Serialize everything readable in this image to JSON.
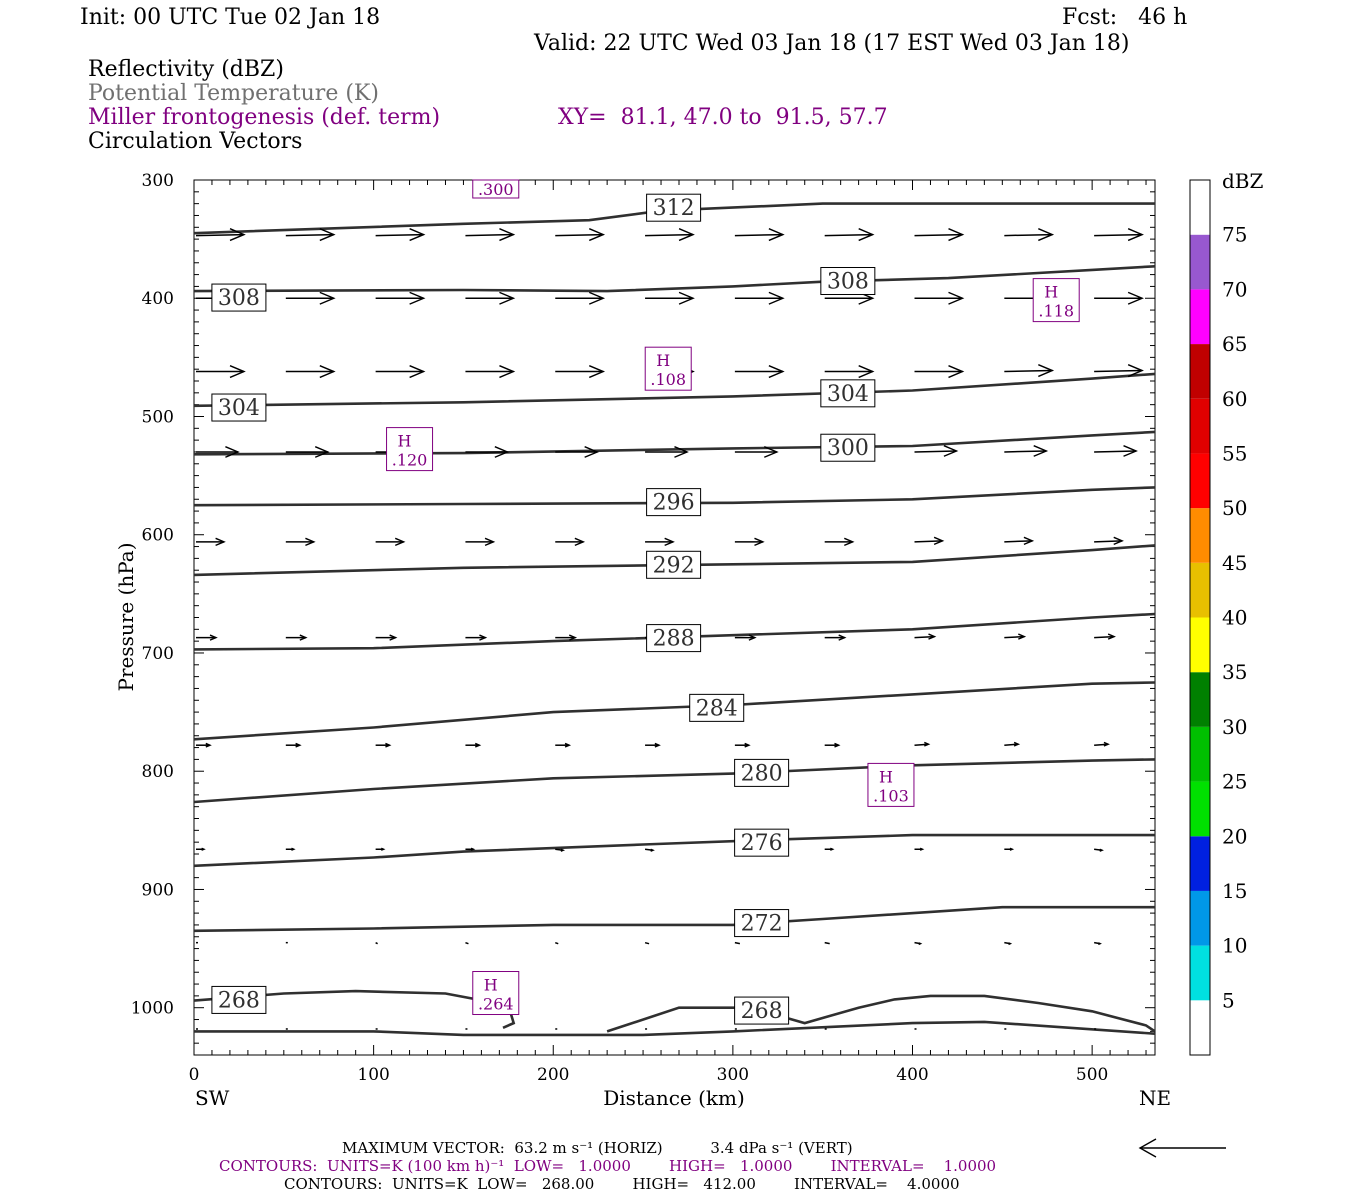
{
  "header": {
    "init": "Init: 00 UTC Tue 02 Jan 18",
    "fcst": "Fcst:   46 h",
    "valid": "Valid: 22 UTC Wed 03 Jan 18 (17 EST Wed 03 Jan 18)",
    "field1": "Reflectivity (dBZ)",
    "field2": "Potential Temperature (K)",
    "field3": "Miller frontogenesis (def. term)",
    "xy": "XY=  81.1, 47.0 to  91.5, 57.7",
    "field4": "Circulation Vectors"
  },
  "colors": {
    "purple": "#800080",
    "theta": "#303030",
    "colorbar": [
      "#ffffff",
      "#00e0e0",
      "#0098e8",
      "#0020e0",
      "#00e000",
      "#00c000",
      "#008000",
      "#ffff00",
      "#e8c000",
      "#ff8c00",
      "#ff0000",
      "#e00000",
      "#c00000",
      "#ff00ff",
      "#9858d0",
      "#ffffff"
    ]
  },
  "chart_data": {
    "type": "cross-section",
    "xlabel": "Distance (km)",
    "ylabel": "Pressure (hPa)",
    "xlim": [
      0,
      535
    ],
    "ylim": [
      1040,
      300
    ],
    "x_ticks": [
      "0",
      "100",
      "200",
      "300",
      "400",
      "500"
    ],
    "y_ticks": [
      "300",
      "400",
      "500",
      "600",
      "700",
      "800",
      "900",
      "1000"
    ],
    "left_end": "SW",
    "right_end": "NE",
    "theta_contours": [
      {
        "label": "312",
        "label_at": [
          267,
          323
        ],
        "points": [
          [
            0,
            345
          ],
          [
            150,
            337
          ],
          [
            220,
            334
          ],
          [
            260,
            326
          ],
          [
            350,
            320
          ],
          [
            535,
            320
          ]
        ]
      },
      {
        "label": "308",
        "label_at": [
          25,
          399
        ],
        "points": [
          [
            0,
            394
          ],
          [
            150,
            393
          ],
          [
            230,
            394
          ],
          [
            300,
            390
          ],
          [
            350,
            386
          ],
          [
            420,
            383
          ],
          [
            500,
            376
          ],
          [
            535,
            373
          ]
        ]
      },
      {
        "label": "308",
        "label_at": [
          364,
          385
        ],
        "points": []
      },
      {
        "label": "304",
        "label_at": [
          25,
          492
        ],
        "points": [
          [
            0,
            491
          ],
          [
            150,
            488
          ],
          [
            300,
            483
          ],
          [
            400,
            478
          ],
          [
            500,
            468
          ],
          [
            535,
            464
          ]
        ]
      },
      {
        "label": "304",
        "label_at": [
          364,
          480
        ],
        "points": []
      },
      {
        "label": "300",
        "label_at": [
          364,
          526
        ],
        "points": [
          [
            0,
            532
          ],
          [
            150,
            531
          ],
          [
            300,
            527
          ],
          [
            400,
            525
          ],
          [
            500,
            516
          ],
          [
            535,
            513
          ]
        ]
      },
      {
        "label": "296",
        "label_at": [
          267,
          572
        ],
        "points": [
          [
            0,
            575
          ],
          [
            150,
            574
          ],
          [
            300,
            573
          ],
          [
            400,
            570
          ],
          [
            500,
            562
          ],
          [
            535,
            560
          ]
        ]
      },
      {
        "label": "292",
        "label_at": [
          267,
          625
        ],
        "points": [
          [
            0,
            634
          ],
          [
            150,
            628
          ],
          [
            300,
            625
          ],
          [
            400,
            623
          ],
          [
            500,
            613
          ],
          [
            535,
            609
          ]
        ]
      },
      {
        "label": "288",
        "label_at": [
          267,
          687
        ],
        "points": [
          [
            0,
            697
          ],
          [
            100,
            696
          ],
          [
            200,
            690
          ],
          [
            300,
            685
          ],
          [
            400,
            680
          ],
          [
            500,
            670
          ],
          [
            535,
            667
          ]
        ]
      },
      {
        "label": "284",
        "label_at": [
          291,
          746
        ],
        "points": [
          [
            0,
            773
          ],
          [
            100,
            763
          ],
          [
            200,
            750
          ],
          [
            300,
            744
          ],
          [
            400,
            735
          ],
          [
            500,
            726
          ],
          [
            535,
            725
          ]
        ]
      },
      {
        "label": "280",
        "label_at": [
          316,
          801
        ],
        "points": [
          [
            0,
            826
          ],
          [
            100,
            815
          ],
          [
            200,
            806
          ],
          [
            300,
            802
          ],
          [
            400,
            795
          ],
          [
            500,
            791
          ],
          [
            535,
            790
          ]
        ]
      },
      {
        "label": "276",
        "label_at": [
          316,
          860
        ],
        "points": [
          [
            0,
            880
          ],
          [
            100,
            873
          ],
          [
            150,
            868
          ],
          [
            250,
            862
          ],
          [
            320,
            858
          ],
          [
            400,
            854
          ],
          [
            535,
            854
          ]
        ]
      },
      {
        "label": "272",
        "label_at": [
          316,
          928
        ],
        "points": [
          [
            0,
            935
          ],
          [
            100,
            933
          ],
          [
            200,
            930
          ],
          [
            300,
            930
          ],
          [
            350,
            925
          ],
          [
            450,
            915
          ],
          [
            535,
            915
          ]
        ]
      },
      {
        "label": "268",
        "label_at": [
          25,
          993
        ],
        "points": [
          [
            0,
            994
          ],
          [
            50,
            988
          ],
          [
            90,
            986
          ],
          [
            140,
            988
          ],
          [
            175,
            998
          ],
          [
            178,
            1013
          ],
          [
            172,
            1017
          ]
        ]
      },
      {
        "label": "268",
        "label_at": [
          316,
          1002
        ],
        "points": [
          [
            230,
            1020
          ],
          [
            270,
            1000
          ],
          [
            310,
            1000
          ],
          [
            340,
            1013
          ],
          [
            370,
            1000
          ],
          [
            390,
            993
          ],
          [
            410,
            990
          ],
          [
            440,
            990
          ],
          [
            470,
            996
          ],
          [
            500,
            1003
          ],
          [
            530,
            1015
          ],
          [
            535,
            1020
          ]
        ]
      },
      {
        "label": "",
        "label_at": [
          0,
          0
        ],
        "points": [
          [
            0,
            1020
          ],
          [
            100,
            1020
          ],
          [
            150,
            1023
          ],
          [
            250,
            1023
          ],
          [
            300,
            1020
          ],
          [
            400,
            1013
          ],
          [
            440,
            1012
          ],
          [
            535,
            1022
          ]
        ]
      }
    ],
    "frontogenesis_maxima": [
      {
        "label": "H",
        "value": ".118",
        "at": [
          480,
          402
        ]
      },
      {
        "label": "H",
        "value": ".108",
        "at": [
          264,
          460
        ]
      },
      {
        "label": "H",
        "value": ".120",
        "at": [
          120,
          528
        ]
      },
      {
        "label": "H",
        "value": ".103",
        "at": [
          388,
          812
        ]
      },
      {
        "label": "H",
        "value": ".264",
        "at": [
          168,
          988
        ]
      },
      {
        "label": "",
        "value": ".300",
        "at": [
          168,
          308
        ]
      }
    ],
    "vectors": [
      {
        "p": 347,
        "dx": [
          48,
          48,
          48,
          48,
          48,
          48,
          48,
          48,
          48,
          48,
          48
        ],
        "dy": [
          -1,
          -1,
          -1,
          -1,
          -1,
          -1,
          -1,
          -1,
          -1,
          -1,
          -1
        ]
      },
      {
        "p": 400,
        "dx": [
          48,
          48,
          48,
          48,
          48,
          48,
          48,
          48,
          48,
          48,
          48
        ],
        "dy": [
          0,
          0,
          0,
          0,
          0,
          0,
          0,
          0,
          0,
          0,
          0
        ]
      },
      {
        "p": 462,
        "dx": [
          48,
          48,
          48,
          48,
          48,
          48,
          48,
          48,
          48,
          48,
          48
        ],
        "dy": [
          0,
          0,
          0,
          0,
          0,
          0,
          0,
          0,
          0,
          -1,
          -1
        ]
      },
      {
        "p": 530,
        "dx": [
          42,
          42,
          42,
          42,
          42,
          42,
          42,
          42,
          42,
          42,
          42
        ],
        "dy": [
          0,
          0,
          0,
          0,
          0,
          0,
          0,
          0,
          -1,
          -1,
          -1
        ]
      },
      {
        "p": 606,
        "dx": [
          28,
          28,
          28,
          28,
          28,
          28,
          28,
          28,
          28,
          28,
          28
        ],
        "dy": [
          0,
          0,
          0,
          0,
          0,
          0,
          0,
          0,
          -1,
          -1,
          -1
        ]
      },
      {
        "p": 687,
        "dx": [
          20,
          20,
          20,
          20,
          20,
          20,
          20,
          20,
          20,
          20,
          20
        ],
        "dy": [
          0,
          0,
          0,
          0,
          0,
          0,
          0,
          0,
          -1,
          -1,
          -1
        ]
      },
      {
        "p": 778,
        "dx": [
          14,
          14,
          14,
          14,
          14,
          14,
          14,
          14,
          14,
          14,
          14
        ],
        "dy": [
          0,
          0,
          0,
          0,
          0,
          0,
          0,
          0,
          -1,
          -1,
          -1
        ]
      },
      {
        "p": 866,
        "dx": [
          8,
          8,
          8,
          8,
          8,
          8,
          8,
          8,
          8,
          8,
          8
        ],
        "dy": [
          0,
          0,
          0,
          0,
          1,
          1,
          1,
          0,
          0,
          0,
          1
        ]
      },
      {
        "p": 945,
        "dx": [
          2,
          2,
          2,
          3,
          3,
          4,
          5,
          5,
          6,
          6,
          6
        ],
        "dy": [
          0,
          0,
          1,
          1,
          1,
          1,
          1,
          1,
          1,
          1,
          1
        ]
      },
      {
        "p": 1018,
        "dx": [
          2,
          2,
          2,
          2,
          2,
          2,
          2,
          2,
          2,
          2,
          2
        ],
        "dy": [
          0,
          0,
          0,
          0,
          0,
          0,
          0,
          0,
          0,
          0,
          0
        ]
      }
    ],
    "vector_x": [
      0,
      50,
      100,
      150,
      200,
      250,
      300,
      350,
      400,
      450,
      500
    ],
    "colorbar": {
      "title": "dBZ",
      "labels": [
        "5",
        "10",
        "15",
        "20",
        "25",
        "30",
        "35",
        "40",
        "45",
        "50",
        "55",
        "60",
        "65",
        "70",
        "75"
      ]
    }
  },
  "footer": {
    "max_vector": "MAXIMUM VECTOR:  63.2 m s⁻¹ (HORIZ)          3.4 dPa s⁻¹ (VERT)",
    "contours_purple": "CONTOURS:  UNITS=K (100 km h)⁻¹  LOW=   1.0000        HIGH=   1.0000        INTERVAL=    1.0000",
    "contours_black": "CONTOURS:  UNITS=K  LOW=   268.00        HIGH=   412.00        INTERVAL=    4.0000"
  }
}
